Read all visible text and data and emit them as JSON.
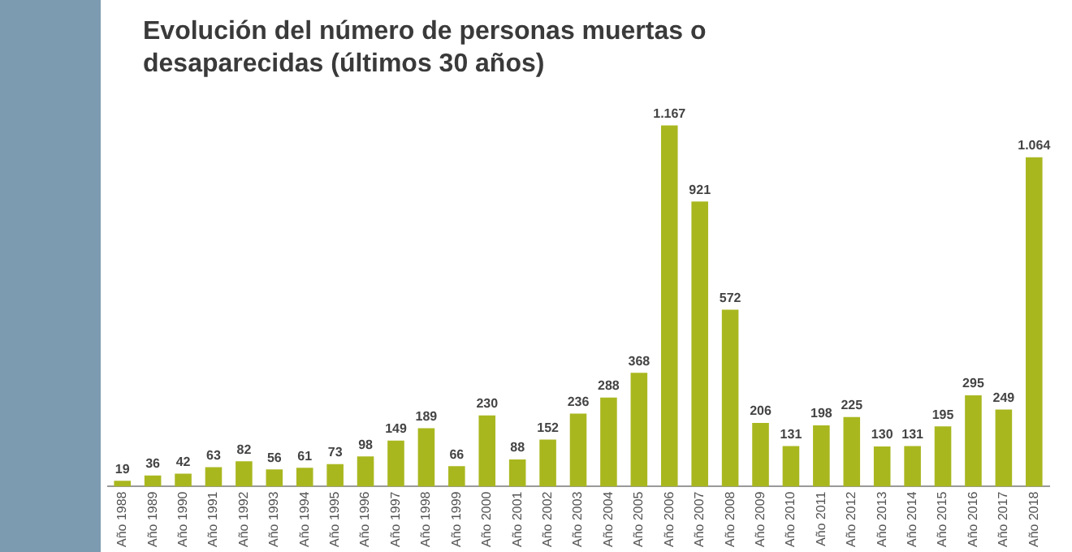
{
  "chart_data": {
    "type": "bar",
    "title": "Evolución del número de personas muertas o desaparecidas (últimos 30 años)",
    "categories": [
      "Año 1988",
      "Año 1989",
      "Año 1990",
      "Año 1991",
      "Año 1992",
      "Año 1993",
      "Año 1994",
      "Año 1995",
      "Año 1996",
      "Año 1997",
      "Año 1998",
      "Año 1999",
      "Año 2000",
      "Año 2001",
      "Año 2002",
      "Año 2003",
      "Año 2004",
      "Año 2005",
      "Año 2006",
      "Año 2007",
      "Año 2008",
      "Año 2009",
      "Año 2010",
      "Año 2011",
      "Año 2012",
      "Año 2013",
      "Año 2014",
      "Año 2015",
      "Año 2016",
      "Año 2017",
      "Año 2018"
    ],
    "values": [
      19,
      36,
      42,
      63,
      82,
      56,
      61,
      73,
      98,
      149,
      189,
      66,
      230,
      88,
      152,
      236,
      288,
      368,
      1167,
      921,
      572,
      206,
      131,
      198,
      225,
      130,
      131,
      195,
      295,
      249,
      1064
    ],
    "value_labels": [
      "19",
      "36",
      "42",
      "63",
      "82",
      "56",
      "61",
      "73",
      "98",
      "149",
      "189",
      "66",
      "230",
      "88",
      "152",
      "236",
      "288",
      "368",
      "1.167",
      "921",
      "572",
      "206",
      "131",
      "198",
      "225",
      "130",
      "131",
      "195",
      "295",
      "249",
      "1.064"
    ],
    "color": "#a9b71f",
    "grid": false,
    "legend": false
  }
}
